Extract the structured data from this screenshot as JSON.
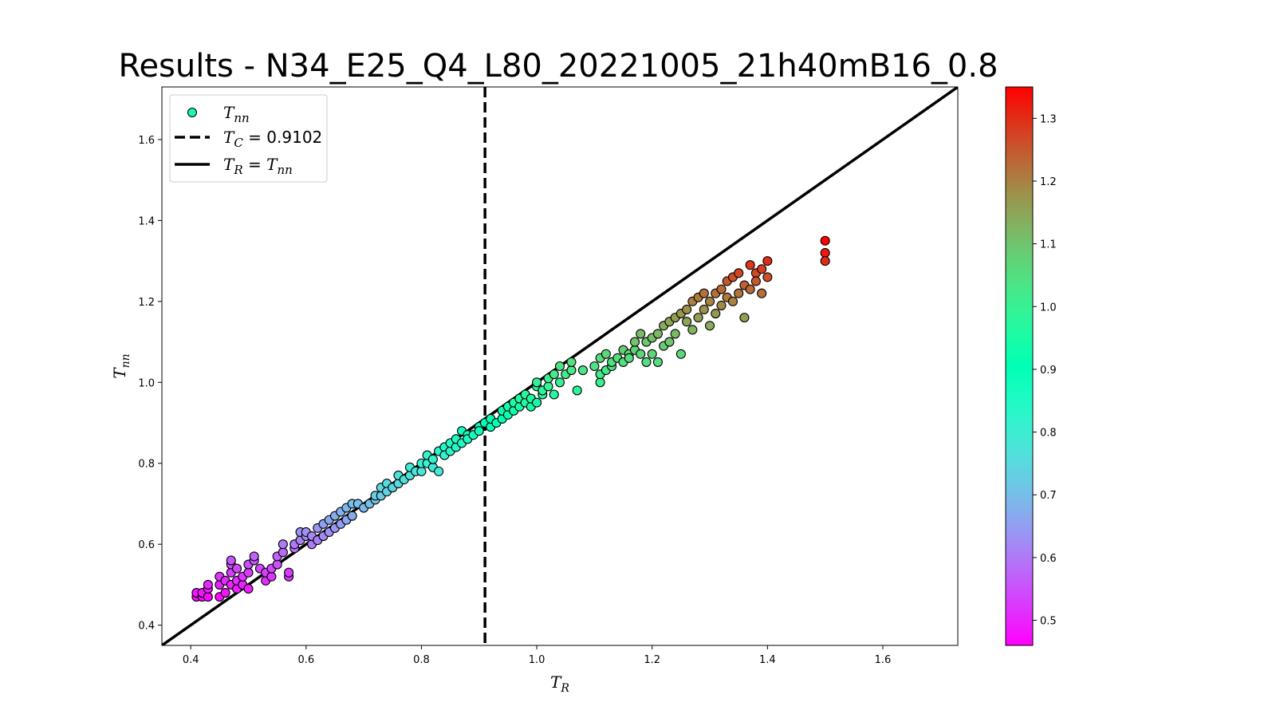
{
  "chart_data": {
    "type": "scatter",
    "title": "Results - N34_E25_Q4_L80_20221005_21h40mB16_0.8",
    "xlabel": {
      "main": "T",
      "sub": "R"
    },
    "ylabel": {
      "main": "T",
      "sub": "nn"
    },
    "xlim": [
      0.35,
      1.73
    ],
    "ylim": [
      0.35,
      1.73
    ],
    "x_ticks": [
      0.4,
      0.6,
      0.8,
      1.0,
      1.2,
      1.4,
      1.6
    ],
    "x_tick_labels": [
      "0.4",
      "0.6",
      "0.8",
      "1.0",
      "1.2",
      "1.4",
      "1.6"
    ],
    "y_ticks": [
      0.4,
      0.6,
      0.8,
      1.0,
      1.2,
      1.4,
      1.6
    ],
    "y_tick_labels": [
      "0.4",
      "0.6",
      "0.8",
      "1.0",
      "1.2",
      "1.4",
      "1.6"
    ],
    "legend_placement": "upper-left",
    "legend": [
      {
        "kind": "marker",
        "main": "T",
        "sub": "nn",
        "rest": ""
      },
      {
        "kind": "dashed-line",
        "main": "T",
        "sub": "C",
        "rest": " = 0.9102"
      },
      {
        "kind": "solid-line",
        "main": "T",
        "sub": "R",
        "rest": " = ",
        "main2": "T",
        "sub2": "nn"
      }
    ],
    "critical_line": {
      "x": 0.9102,
      "style": "dashed",
      "color": "#000000"
    },
    "identity_line": {
      "style": "solid",
      "color": "#000000"
    },
    "colorbar": {
      "colormap": "rainbow",
      "range": [
        0.46,
        1.35
      ],
      "ticks": [
        0.5,
        0.6,
        0.7,
        0.8,
        0.9,
        1.0,
        1.1,
        1.2,
        1.3
      ],
      "tick_labels": [
        "0.5",
        "0.6",
        "0.7",
        "0.8",
        "0.9",
        "1.0",
        "1.1",
        "1.2",
        "1.3"
      ]
    },
    "points": [
      [
        0.41,
        0.47
      ],
      [
        0.41,
        0.48
      ],
      [
        0.42,
        0.47
      ],
      [
        0.42,
        0.48
      ],
      [
        0.43,
        0.47
      ],
      [
        0.43,
        0.49
      ],
      [
        0.43,
        0.5
      ],
      [
        0.45,
        0.47
      ],
      [
        0.45,
        0.5
      ],
      [
        0.45,
        0.52
      ],
      [
        0.46,
        0.48
      ],
      [
        0.46,
        0.51
      ],
      [
        0.47,
        0.53
      ],
      [
        0.47,
        0.55
      ],
      [
        0.47,
        0.56
      ],
      [
        0.47,
        0.5
      ],
      [
        0.48,
        0.49
      ],
      [
        0.48,
        0.51
      ],
      [
        0.48,
        0.54
      ],
      [
        0.49,
        0.5
      ],
      [
        0.49,
        0.52
      ],
      [
        0.5,
        0.49
      ],
      [
        0.5,
        0.53
      ],
      [
        0.5,
        0.55
      ],
      [
        0.51,
        0.56
      ],
      [
        0.51,
        0.57
      ],
      [
        0.52,
        0.54
      ],
      [
        0.53,
        0.51
      ],
      [
        0.53,
        0.53
      ],
      [
        0.54,
        0.52
      ],
      [
        0.54,
        0.54
      ],
      [
        0.55,
        0.55
      ],
      [
        0.55,
        0.57
      ],
      [
        0.56,
        0.58
      ],
      [
        0.56,
        0.6
      ],
      [
        0.57,
        0.52
      ],
      [
        0.57,
        0.53
      ],
      [
        0.58,
        0.59
      ],
      [
        0.58,
        0.6
      ],
      [
        0.59,
        0.61
      ],
      [
        0.59,
        0.63
      ],
      [
        0.6,
        0.62
      ],
      [
        0.6,
        0.63
      ],
      [
        0.61,
        0.6
      ],
      [
        0.61,
        0.62
      ],
      [
        0.62,
        0.64
      ],
      [
        0.62,
        0.61
      ],
      [
        0.63,
        0.62
      ],
      [
        0.63,
        0.65
      ],
      [
        0.64,
        0.63
      ],
      [
        0.64,
        0.66
      ],
      [
        0.65,
        0.64
      ],
      [
        0.65,
        0.67
      ],
      [
        0.66,
        0.65
      ],
      [
        0.66,
        0.68
      ],
      [
        0.67,
        0.66
      ],
      [
        0.67,
        0.69
      ],
      [
        0.68,
        0.67
      ],
      [
        0.68,
        0.7
      ],
      [
        0.69,
        0.7
      ],
      [
        0.7,
        0.69
      ],
      [
        0.71,
        0.7
      ],
      [
        0.72,
        0.71
      ],
      [
        0.72,
        0.72
      ],
      [
        0.73,
        0.72
      ],
      [
        0.73,
        0.74
      ],
      [
        0.74,
        0.75
      ],
      [
        0.74,
        0.73
      ],
      [
        0.75,
        0.74
      ],
      [
        0.76,
        0.75
      ],
      [
        0.76,
        0.77
      ],
      [
        0.77,
        0.76
      ],
      [
        0.78,
        0.77
      ],
      [
        0.78,
        0.79
      ],
      [
        0.79,
        0.78
      ],
      [
        0.8,
        0.78
      ],
      [
        0.8,
        0.8
      ],
      [
        0.81,
        0.8
      ],
      [
        0.81,
        0.82
      ],
      [
        0.82,
        0.79
      ],
      [
        0.82,
        0.81
      ],
      [
        0.83,
        0.83
      ],
      [
        0.83,
        0.78
      ],
      [
        0.84,
        0.84
      ],
      [
        0.84,
        0.82
      ],
      [
        0.85,
        0.83
      ],
      [
        0.85,
        0.85
      ],
      [
        0.86,
        0.84
      ],
      [
        0.86,
        0.86
      ],
      [
        0.87,
        0.85
      ],
      [
        0.87,
        0.88
      ],
      [
        0.88,
        0.87
      ],
      [
        0.88,
        0.86
      ],
      [
        0.89,
        0.87
      ],
      [
        0.9,
        0.89
      ],
      [
        0.9,
        0.88
      ],
      [
        0.91,
        0.9
      ],
      [
        0.92,
        0.89
      ],
      [
        0.92,
        0.91
      ],
      [
        0.93,
        0.9
      ],
      [
        0.94,
        0.91
      ],
      [
        0.94,
        0.93
      ],
      [
        0.95,
        0.92
      ],
      [
        0.95,
        0.94
      ],
      [
        0.96,
        0.93
      ],
      [
        0.96,
        0.95
      ],
      [
        0.97,
        0.94
      ],
      [
        0.97,
        0.96
      ],
      [
        0.98,
        0.95
      ],
      [
        0.98,
        0.97
      ],
      [
        0.99,
        0.94
      ],
      [
        0.99,
        0.96
      ],
      [
        1.0,
        0.95
      ],
      [
        1.0,
        0.99
      ],
      [
        1.0,
        1.0
      ],
      [
        1.01,
        0.97
      ],
      [
        1.01,
        0.98
      ],
      [
        1.02,
        0.99
      ],
      [
        1.02,
        1.01
      ],
      [
        1.03,
        0.97
      ],
      [
        1.03,
        1.02
      ],
      [
        1.04,
        1.0
      ],
      [
        1.04,
        1.04
      ],
      [
        1.05,
        1.02
      ],
      [
        1.06,
        1.03
      ],
      [
        1.06,
        1.05
      ],
      [
        1.07,
        0.98
      ],
      [
        1.08,
        1.03
      ],
      [
        1.1,
        1.04
      ],
      [
        1.11,
        1.0
      ],
      [
        1.11,
        1.02
      ],
      [
        1.11,
        1.06
      ],
      [
        1.12,
        1.03
      ],
      [
        1.12,
        1.07
      ],
      [
        1.13,
        1.04
      ],
      [
        1.13,
        1.05
      ],
      [
        1.14,
        1.06
      ],
      [
        1.15,
        1.08
      ],
      [
        1.15,
        1.05
      ],
      [
        1.16,
        1.07
      ],
      [
        1.16,
        1.06
      ],
      [
        1.17,
        1.08
      ],
      [
        1.17,
        1.1
      ],
      [
        1.18,
        1.07
      ],
      [
        1.18,
        1.12
      ],
      [
        1.19,
        1.1
      ],
      [
        1.19,
        1.05
      ],
      [
        1.2,
        1.11
      ],
      [
        1.2,
        1.07
      ],
      [
        1.21,
        1.12
      ],
      [
        1.21,
        1.05
      ],
      [
        1.22,
        1.09
      ],
      [
        1.22,
        1.14
      ],
      [
        1.23,
        1.15
      ],
      [
        1.23,
        1.1
      ],
      [
        1.24,
        1.16
      ],
      [
        1.24,
        1.12
      ],
      [
        1.25,
        1.17
      ],
      [
        1.25,
        1.07
      ],
      [
        1.26,
        1.18
      ],
      [
        1.26,
        1.15
      ],
      [
        1.27,
        1.2
      ],
      [
        1.27,
        1.13
      ],
      [
        1.28,
        1.21
      ],
      [
        1.28,
        1.16
      ],
      [
        1.29,
        1.22
      ],
      [
        1.29,
        1.18
      ],
      [
        1.3,
        1.2
      ],
      [
        1.3,
        1.14
      ],
      [
        1.31,
        1.22
      ],
      [
        1.31,
        1.17
      ],
      [
        1.32,
        1.23
      ],
      [
        1.32,
        1.19
      ],
      [
        1.33,
        1.25
      ],
      [
        1.33,
        1.21
      ],
      [
        1.34,
        1.26
      ],
      [
        1.34,
        1.2
      ],
      [
        1.35,
        1.27
      ],
      [
        1.35,
        1.22
      ],
      [
        1.36,
        1.24
      ],
      [
        1.36,
        1.16
      ],
      [
        1.37,
        1.29
      ],
      [
        1.37,
        1.23
      ],
      [
        1.38,
        1.27
      ],
      [
        1.38,
        1.25
      ],
      [
        1.39,
        1.28
      ],
      [
        1.39,
        1.22
      ],
      [
        1.4,
        1.3
      ],
      [
        1.4,
        1.26
      ],
      [
        1.5,
        1.35
      ],
      [
        1.5,
        1.32
      ],
      [
        1.5,
        1.3
      ]
    ]
  }
}
